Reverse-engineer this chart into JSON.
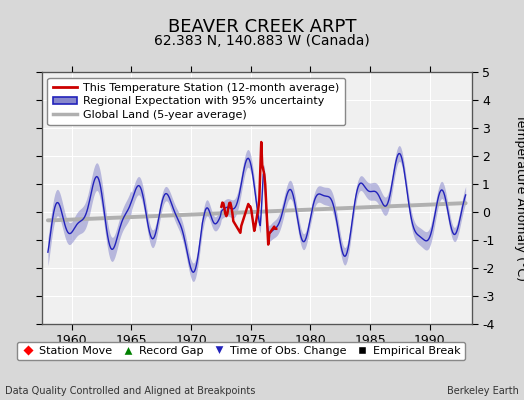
{
  "title": "BEAVER CREEK ARPT",
  "subtitle": "62.383 N, 140.883 W (Canada)",
  "ylabel": "Temperature Anomaly (°C)",
  "xlabel_bottom_left": "Data Quality Controlled and Aligned at Breakpoints",
  "xlabel_bottom_right": "Berkeley Earth",
  "ylim": [
    -4,
    5
  ],
  "xlim": [
    1957.5,
    1993.5
  ],
  "xticks": [
    1960,
    1965,
    1970,
    1975,
    1980,
    1985,
    1990
  ],
  "yticks": [
    -4,
    -3,
    -2,
    -1,
    0,
    1,
    2,
    3,
    4,
    5
  ],
  "fig_bg_color": "#d8d8d8",
  "plot_bg_color": "#f0f0f0",
  "regional_color": "#2222bb",
  "regional_fill_color": "#8888cc",
  "station_color": "#cc0000",
  "global_color": "#b0b0b0",
  "legend1_entries": [
    "This Temperature Station (12-month average)",
    "Regional Expectation with 95% uncertainty",
    "Global Land (5-year average)"
  ],
  "legend2_entries": [
    "Station Move",
    "Record Gap",
    "Time of Obs. Change",
    "Empirical Break"
  ],
  "grid_color": "#ffffff",
  "title_fontsize": 13,
  "subtitle_fontsize": 10,
  "tick_fontsize": 9,
  "legend_fontsize": 8
}
